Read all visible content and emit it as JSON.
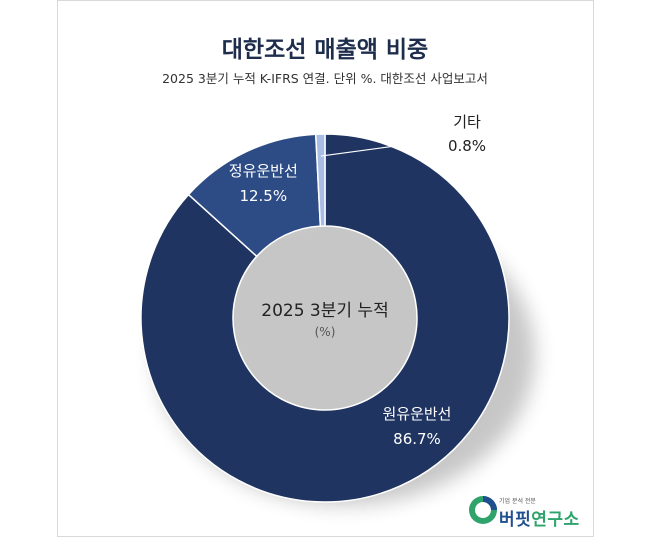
{
  "header": {
    "title": "대한조선 매출액 비중",
    "subtitle": "2025 3분기 누적 K-IFRS 연결. 단위 %. 대한조선 사업보고서"
  },
  "chart_data": {
    "type": "pie",
    "style": "donut",
    "title": "대한조선 매출액 비중",
    "subtitle": "2025 3분기 누적 K-IFRS 연결. 단위 %. 대한조선 사업보고서",
    "center_label": "2025 3분기 누적",
    "center_unit": "(%)",
    "slices": [
      {
        "name": "원유운반선",
        "value": 86.7,
        "label": "86.7%",
        "color": "#1f3461"
      },
      {
        "name": "정유운반선",
        "value": 12.5,
        "label": "12.5%",
        "color": "#2d4c86"
      },
      {
        "name": "기타",
        "value": 0.8,
        "label": "0.8%",
        "color": "#a9bde4"
      }
    ]
  },
  "watermark": {
    "tagline": "기업 분석 전문",
    "brand_first": "버핏",
    "brand_rest": "연구소"
  }
}
